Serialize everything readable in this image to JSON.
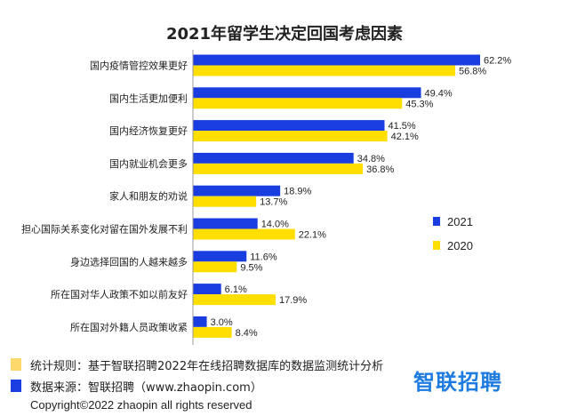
{
  "chart_data": {
    "type": "bar",
    "orientation": "horizontal",
    "title": "2021年留学生决定回国考虑因素",
    "categories": [
      "国内疫情管控效果更好",
      "国内生活更加便利",
      "国内经济恢复更好",
      "国内就业机会更多",
      "家人和朋友的劝说",
      "担心国际关系变化对留在国外发展不利",
      "身边选择回国的人越来越多",
      "所在国对华人政策不如以前友好",
      "所在国对外籍人员政策收紧"
    ],
    "series": [
      {
        "name": "2021",
        "color": "#1a3de0",
        "values": [
          62.2,
          49.4,
          41.5,
          34.8,
          18.9,
          14.0,
          11.6,
          6.1,
          3.0
        ],
        "labels": [
          "62.2%",
          "49.4%",
          "41.5%",
          "34.8%",
          "18.9%",
          "14.0%",
          "11.6%",
          "6.1%",
          "3.0%"
        ]
      },
      {
        "name": "2020",
        "color": "#ffde00",
        "values": [
          56.8,
          45.3,
          42.1,
          36.8,
          13.7,
          22.1,
          9.5,
          17.9,
          8.4
        ],
        "labels": [
          "56.8%",
          "45.3%",
          "42.1%",
          "36.8%",
          "13.7%",
          "22.1%",
          "9.5%",
          "17.9%",
          "8.4%"
        ]
      }
    ],
    "xlim": [
      0,
      70
    ],
    "grid": false,
    "legend_position": "right"
  },
  "footer": {
    "rule_label": "统计规则：基于智联招聘2022年在线招聘数据库的数据监测统计分析",
    "rule_color": "#fcd96a",
    "source_label": "数据来源：智联招聘（www.zhaopin.com）",
    "source_color": "#1a3de0",
    "logo_text": "智联招聘",
    "copyright": "Copyright©2022 zhaopin all rights reserved"
  }
}
